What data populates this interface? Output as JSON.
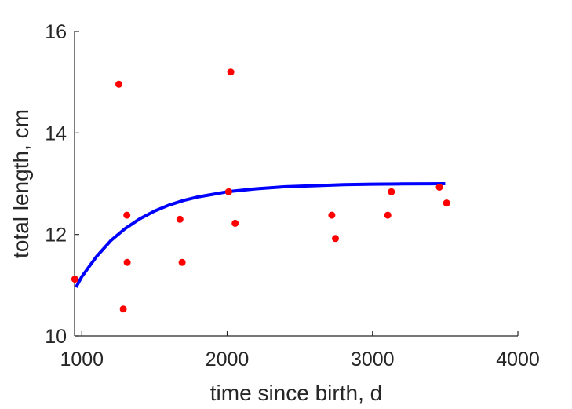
{
  "chart_data": {
    "type": "scatter",
    "title": "",
    "xlabel": "time since birth, d",
    "ylabel": "total length, cm",
    "xlim": [
      950,
      4000
    ],
    "ylim": [
      10,
      16
    ],
    "xticks": [
      1000,
      2000,
      3000,
      4000
    ],
    "yticks": [
      10,
      12,
      14,
      16
    ],
    "grid": false,
    "legend": "none",
    "colors": {
      "points": "#ff0000",
      "fit": "#0000ff",
      "axis": "#262626"
    },
    "series": [
      {
        "type": "scatter",
        "x": [
          952,
          1255,
          1285,
          1310,
          1312,
          1675,
          1690,
          2010,
          2025,
          2055,
          2720,
          2745,
          3105,
          3130,
          3460,
          3510
        ],
        "y": [
          11.12,
          14.96,
          10.53,
          12.38,
          11.45,
          12.3,
          11.45,
          12.84,
          15.2,
          12.22,
          12.38,
          11.92,
          12.38,
          12.84,
          12.93,
          12.62
        ]
      },
      {
        "type": "line",
        "x": [
          960,
          1000,
          1100,
          1200,
          1300,
          1400,
          1500,
          1600,
          1700,
          1800,
          1900,
          2000,
          2200,
          2400,
          2600,
          2800,
          3000,
          3200,
          3400,
          3500
        ],
        "y": [
          10.96,
          11.17,
          11.56,
          11.88,
          12.12,
          12.31,
          12.46,
          12.58,
          12.67,
          12.74,
          12.79,
          12.84,
          12.9,
          12.94,
          12.96,
          12.98,
          12.99,
          12.995,
          12.998,
          13.0
        ]
      }
    ]
  }
}
